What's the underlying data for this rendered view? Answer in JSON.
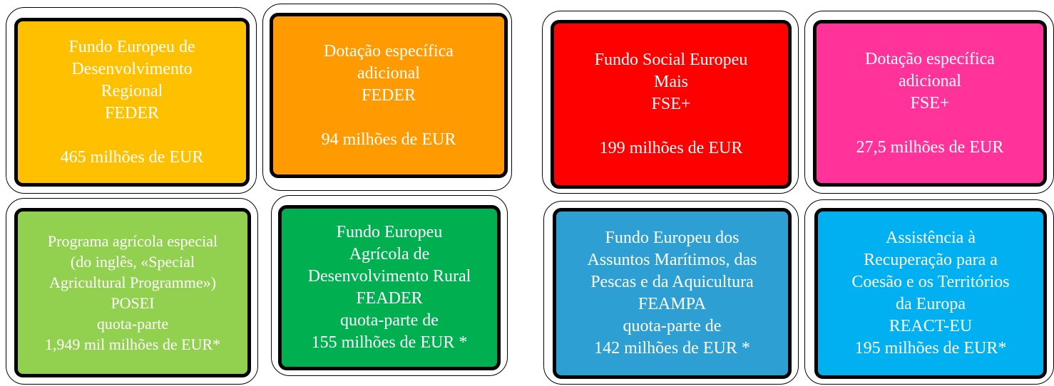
{
  "nodes": [
    {
      "lines": [
        "Fundo Europeu de",
        "Desenvolvimento",
        "Regional",
        "FEDER"
      ],
      "amount": "465 milhões de EUR",
      "color": "#FFC000"
    },
    {
      "lines": [
        "Dotação específica",
        "adicional",
        "FEDER"
      ],
      "amount": "94 milhões de EUR",
      "color": "#FF9A00"
    },
    {
      "lines": [
        "Fundo Social Europeu",
        "Mais",
        "FSE+"
      ],
      "amount": "199 milhões de EUR",
      "color": "#FF0000"
    },
    {
      "lines": [
        "Dotação específica",
        "adicional",
        "FSE+"
      ],
      "amount": "27,5 milhões de EUR",
      "color": "#FF3399"
    },
    {
      "lines": [
        "Programa agrícola especial",
        "(do inglês, «Special",
        "Agricultural Programme»)",
        "POSEI",
        "quota-parte",
        "1,949 mil milhões de EUR*"
      ],
      "color": "#92D050"
    },
    {
      "lines": [
        "Fundo Europeu",
        "Agrícola de",
        "Desenvolvimento Rural",
        "FEADER",
        "quota-parte de",
        "155 milhões de EUR *"
      ],
      "color": "#00B050"
    },
    {
      "lines": [
        "Fundo Europeu dos",
        "Assuntos Marítimos, das",
        "Pescas e da Aquicultura",
        "FEAMPA",
        "quota-parte de",
        "142 milhões de EUR *"
      ],
      "color": "#2E9FD3"
    },
    {
      "lines": [
        "Assistência à",
        "Recuperação para a",
        "Coesão e os Territórios",
        "da Europa",
        "REACT-EU",
        "195 milhões de EUR*"
      ],
      "color": "#00B0F0"
    }
  ]
}
